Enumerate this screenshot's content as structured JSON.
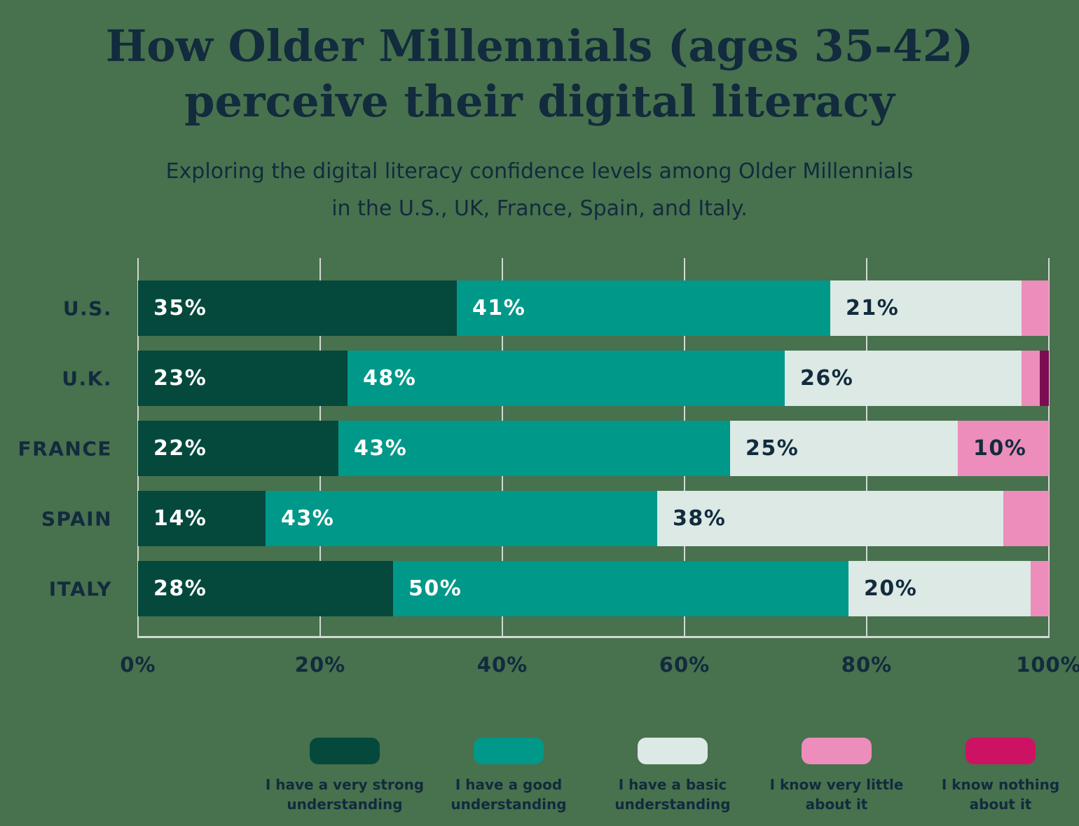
{
  "title": {
    "line1": "How Older Millennials (ages 35-42)",
    "line2": "perceive their digital literacy"
  },
  "subtitle": {
    "line1": "Exploring the digital literacy confidence levels among Older Millennials",
    "line2": "in the U.S., UK, France, Spain, and Italy."
  },
  "colors": {
    "background": "#48714E",
    "text": "#122B3D",
    "gridline": "#CFDAD3",
    "bar_label_light": "#FFFFFF",
    "bar_label_dark": "#122B3D"
  },
  "chart_data": {
    "type": "bar",
    "orientation": "horizontal",
    "stacked": true,
    "title": "How Older Millennials (ages 35-42) perceive their digital literacy",
    "subtitle": "Exploring the digital literacy confidence levels among Older Millennials in the U.S., UK, France, Spain, and Italy.",
    "categories": [
      "U.S.",
      "U.K.",
      "FRANCE",
      "SPAIN",
      "ITALY"
    ],
    "series": [
      {
        "name": "I have a very strong understanding",
        "legend_label": [
          "I have a very strong",
          "understanding"
        ],
        "color": "#05493D",
        "label_color": "#FFFFFF",
        "values": [
          35,
          23,
          22,
          14,
          28
        ]
      },
      {
        "name": "I have a good understanding",
        "legend_label": [
          "I have a good",
          "understanding"
        ],
        "color": "#009889",
        "label_color": "#FFFFFF",
        "values": [
          41,
          48,
          43,
          43,
          50
        ]
      },
      {
        "name": "I have a basic understanding",
        "legend_label": [
          "I have a basic",
          "understanding"
        ],
        "color": "#DCE9E4",
        "label_color": "#122B3D",
        "values": [
          21,
          26,
          25,
          38,
          20
        ]
      },
      {
        "name": "I know very little about it",
        "legend_label": [
          "I know very little",
          "about it"
        ],
        "color": "#EC8DBB",
        "label_color": "#122B3D",
        "values": [
          3,
          2,
          10,
          5,
          2
        ]
      },
      {
        "name": "I know nothing about it",
        "legend_label": [
          "I know nothing",
          "about it"
        ],
        "color": "#CE1263",
        "bar_color": "#7B0D51",
        "label_color": "#FFFFFF",
        "values": [
          0,
          1,
          0,
          0,
          0
        ]
      }
    ],
    "x_ticks": [
      "0%",
      "20%",
      "40%",
      "60%",
      "80%",
      "100%"
    ],
    "xlim": [
      0,
      100
    ],
    "value_suffix": "%",
    "label_min_value": 10,
    "grid": true,
    "legend_position": "bottom"
  }
}
